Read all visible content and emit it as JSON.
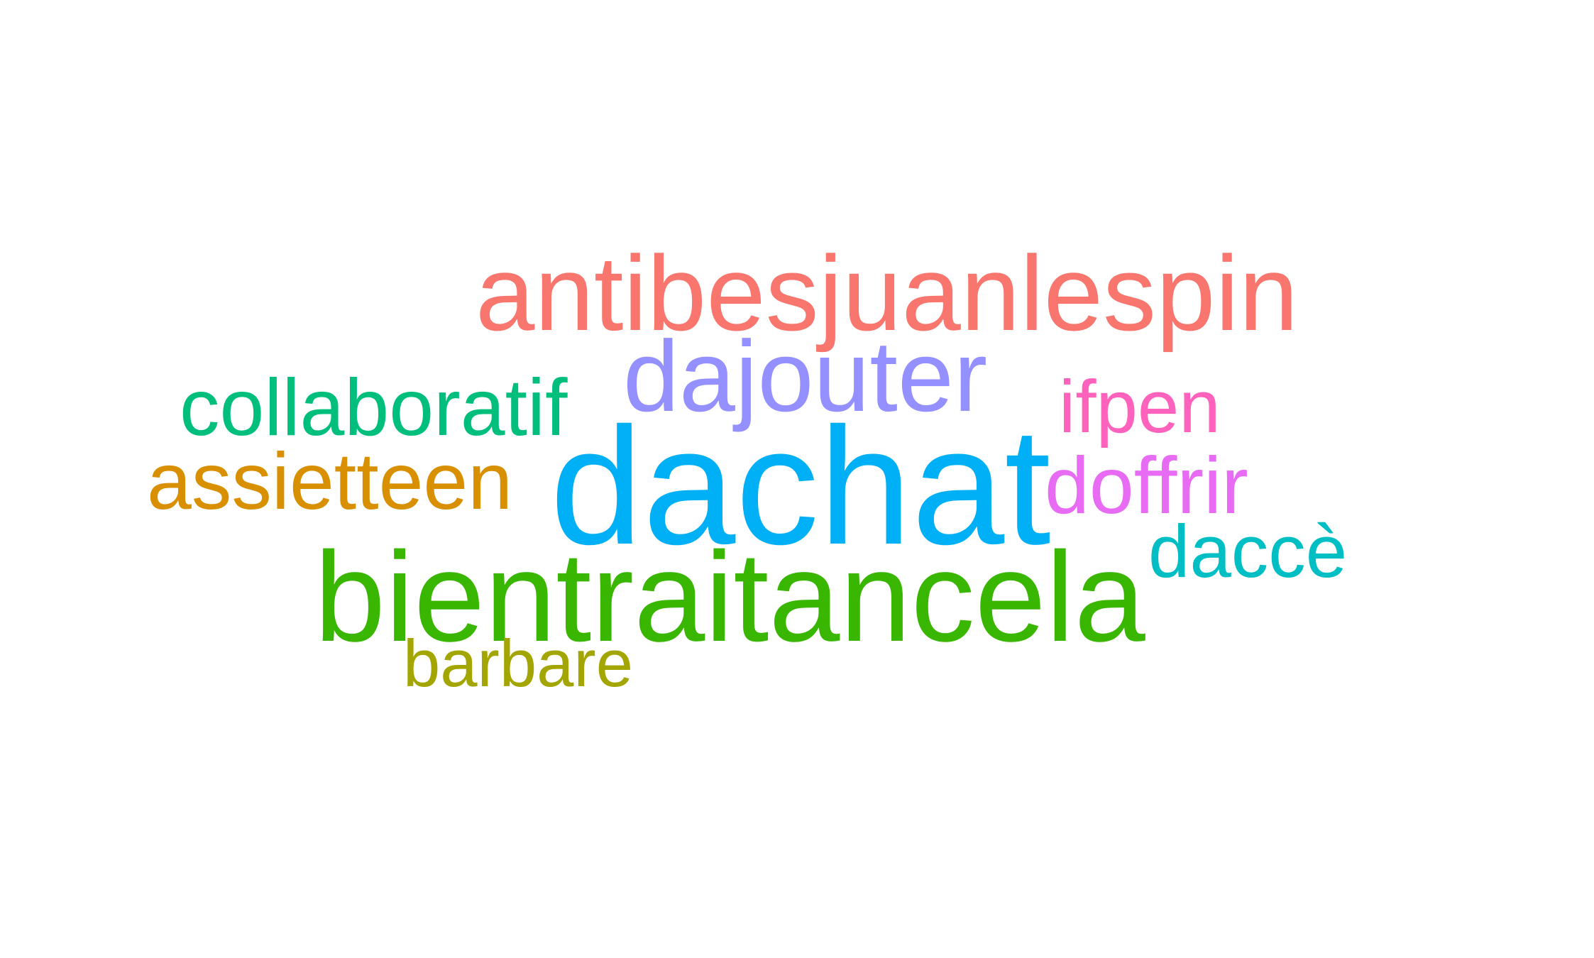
{
  "word_cloud": {
    "words": [
      {
        "text": "antibesjuanlespin",
        "color": "#F8766D"
      },
      {
        "text": "dajouter",
        "color": "#9590FF"
      },
      {
        "text": "collaboratif",
        "color": "#00BF7D"
      },
      {
        "text": "ifpen",
        "color": "#FF62BC"
      },
      {
        "text": "assietteen",
        "color": "#D89000"
      },
      {
        "text": "dachat",
        "color": "#00B0F6"
      },
      {
        "text": "doffrir",
        "color": "#E76BF3"
      },
      {
        "text": "daccè",
        "color": "#00BFC4"
      },
      {
        "text": "bientraitancela",
        "color": "#39B600"
      },
      {
        "text": "barbare",
        "color": "#A3A500"
      }
    ]
  }
}
